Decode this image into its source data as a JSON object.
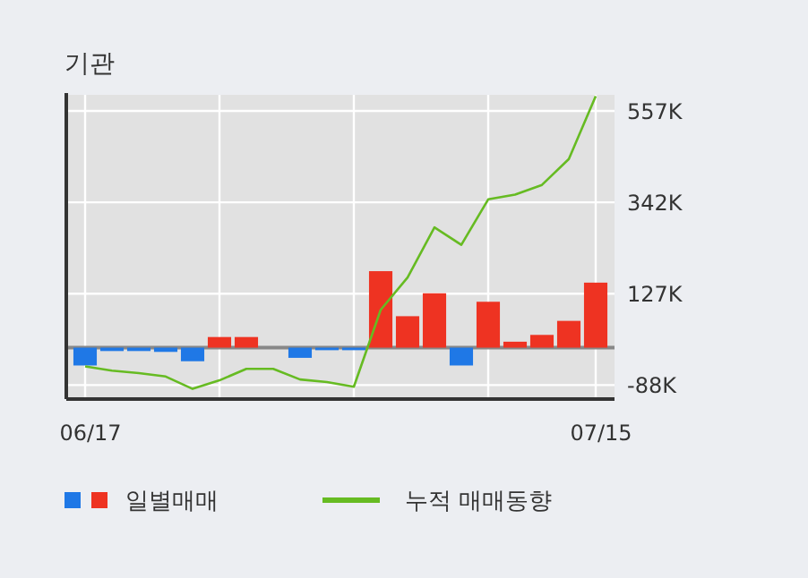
{
  "chart_data": {
    "type": "bar",
    "title": "기관",
    "categories": [
      "06/17",
      null,
      null,
      null,
      null,
      null,
      null,
      null,
      null,
      null,
      null,
      null,
      null,
      null,
      null,
      null,
      null,
      null,
      null,
      "07/15"
    ],
    "series": [
      {
        "name": "일별매매",
        "colors": [
          "#1f78e6",
          "#1f78e6",
          "#1f78e6",
          "#1f78e6",
          "#1f78e6",
          "#ee3322",
          "#ee3322",
          "#ee3322",
          "#1f78e6",
          "#1f78e6",
          "#1f78e6",
          "#ee3322",
          "#ee3322",
          "#ee3322",
          "#1f78e6",
          "#ee3322",
          "#ee3322",
          "#ee3322",
          "#ee3322",
          "#ee3322"
        ],
        "values": [
          -42,
          -8,
          -8,
          -10,
          -32,
          25,
          25,
          0,
          -24,
          -6,
          -6,
          180,
          74,
          128,
          -42,
          108,
          14,
          30,
          63,
          153
        ]
      },
      {
        "name": "누적 매매동향",
        "type": "line",
        "color": "#66bb22",
        "values": [
          -44,
          -54,
          -60,
          -68,
          -97,
          -77,
          -50,
          -50,
          -75,
          -81,
          -92,
          89,
          165,
          283,
          242,
          349,
          360,
          383,
          444,
          592
        ]
      }
    ],
    "ylim": [
      -121,
      595
    ],
    "yticks": [
      {
        "value": -88,
        "label": "-88K"
      },
      {
        "value": 127,
        "label": "127K"
      },
      {
        "value": 342,
        "label": "342K"
      },
      {
        "value": 557,
        "label": "557K"
      }
    ],
    "ref_lines": [
      {
        "axis": "y",
        "value": 0,
        "color": "#888888"
      }
    ],
    "grid": true,
    "legend": "bottom"
  }
}
